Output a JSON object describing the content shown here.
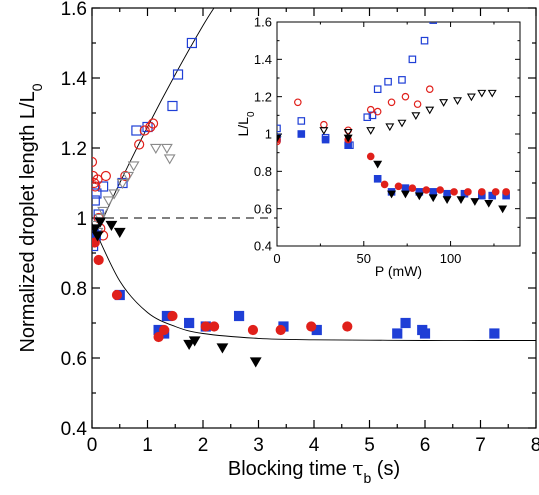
{
  "chart_data": [
    {
      "type": "scatter",
      "title": "",
      "xlabel_main": "Blocking time ",
      "xlabel_symbol": "τ",
      "xlabel_sub": "b",
      "xlabel_unit": " (s)",
      "ylabel_main": "Normalized droplet length L/L",
      "ylabel_sub": "0",
      "xlim": [
        0,
        8
      ],
      "ylim": [
        0.4,
        1.6
      ],
      "xticks": [
        "0",
        "1",
        "2",
        "3",
        "4",
        "5",
        "6",
        "7",
        "8"
      ],
      "yticks": [
        "0.4",
        "0.6",
        "0.8",
        "1",
        "1.2",
        "1.4",
        "1.6"
      ],
      "reference_line_y": 1.0,
      "colors": {
        "blue": "#1f3fd6",
        "red": "#e0201b",
        "black": "#000000",
        "gray": "#8a8a8a"
      },
      "series": [
        {
          "marker": "square-open",
          "color": "#1f3fd6",
          "x": [
            0.02,
            0.03,
            0.05,
            0.08,
            0.12,
            0.2,
            0.55,
            0.8,
            1.0,
            1.45,
            1.55,
            1.8
          ],
          "y": [
            0.92,
            0.96,
            1.05,
            1.07,
            1.01,
            1.09,
            1.1,
            1.25,
            1.26,
            1.32,
            1.41,
            1.5
          ]
        },
        {
          "marker": "circle-open",
          "color": "#e0201b",
          "x": [
            0.0,
            0.02,
            0.04,
            0.06,
            0.1,
            0.12,
            0.15,
            0.2,
            0.25,
            0.6,
            0.85,
            0.95,
            1.05,
            1.1
          ],
          "y": [
            1.16,
            1.12,
            1.1,
            1.09,
            1.11,
            1.0,
            0.97,
            0.95,
            1.12,
            1.12,
            1.21,
            1.25,
            1.26,
            1.27
          ]
        },
        {
          "marker": "triangle-down-open",
          "color": "#8a8a8a",
          "x": [
            0.05,
            0.1,
            0.15,
            0.2,
            0.3,
            0.4,
            0.55,
            0.65,
            0.75,
            1.15,
            1.35,
            1.4
          ],
          "y": [
            0.98,
            0.96,
            1.0,
            1.02,
            1.05,
            1.07,
            1.1,
            1.12,
            1.15,
            1.2,
            1.2,
            1.17
          ]
        },
        {
          "marker": "square-filled",
          "color": "#1f3fd6",
          "x": [
            0.03,
            0.07,
            0.5,
            1.2,
            1.3,
            1.35,
            1.75,
            2.05,
            2.65,
            3.45,
            4.05,
            5.5,
            5.65,
            5.95,
            6.0,
            7.25
          ],
          "y": [
            0.94,
            0.95,
            0.78,
            0.68,
            0.67,
            0.72,
            0.7,
            0.69,
            0.72,
            0.69,
            0.68,
            0.67,
            0.7,
            0.68,
            0.67,
            0.67
          ]
        },
        {
          "marker": "circle-filled",
          "color": "#e0201b",
          "x": [
            0.05,
            0.12,
            0.45,
            1.2,
            1.3,
            1.45,
            2.05,
            2.2,
            2.9,
            3.4,
            3.95,
            4.6
          ],
          "y": [
            0.93,
            0.88,
            0.78,
            0.66,
            0.68,
            0.72,
            0.69,
            0.69,
            0.68,
            0.68,
            0.69,
            0.69
          ]
        },
        {
          "marker": "triangle-down-filled",
          "color": "#000000",
          "x": [
            0.05,
            0.1,
            0.15,
            0.35,
            0.5,
            1.75,
            1.85,
            2.35,
            2.95
          ],
          "y": [
            0.97,
            0.95,
            0.99,
            0.98,
            0.96,
            0.64,
            0.65,
            0.63,
            0.59
          ]
        }
      ],
      "fits": [
        {
          "type": "curve",
          "x": [
            0.0,
            0.5,
            1.0,
            1.5,
            2.0,
            2.28
          ],
          "y": [
            0.93,
            1.1,
            1.26,
            1.41,
            1.55,
            1.62
          ]
        },
        {
          "type": "curve",
          "x": [
            0.0,
            0.5,
            1.0,
            1.5,
            2.0,
            3.0,
            4.0,
            5.0,
            6.0,
            7.0,
            8.0
          ],
          "y": [
            0.985,
            0.82,
            0.73,
            0.69,
            0.67,
            0.656,
            0.652,
            0.651,
            0.65,
            0.65,
            0.65
          ]
        }
      ]
    },
    {
      "type": "scatter",
      "title": "",
      "xlabel": "P (mW)",
      "ylabel_main": "L/L",
      "ylabel_sub": "0",
      "xlim": [
        0,
        140
      ],
      "ylim": [
        0.4,
        1.6
      ],
      "xticks": [
        "0",
        "50",
        "100"
      ],
      "xtick_values": [
        0,
        50,
        100
      ],
      "yticks": [
        "0.4",
        "0.6",
        "0.8",
        "1",
        "1.2",
        "1.4",
        "1.6"
      ],
      "series": [
        {
          "marker": "square-open",
          "color": "#1f3fd6",
          "x": [
            0,
            14,
            28,
            42,
            52,
            55,
            58,
            64,
            72,
            78,
            85,
            90
          ],
          "y": [
            1.03,
            1.07,
            0.98,
            0.94,
            1.09,
            1.1,
            1.24,
            1.28,
            1.29,
            1.4,
            1.5,
            1.61
          ]
        },
        {
          "marker": "circle-open",
          "color": "#e0201b",
          "x": [
            0,
            12,
            27,
            41,
            54,
            58,
            66,
            74,
            81,
            88
          ],
          "y": [
            0.96,
            1.17,
            1.05,
            1.02,
            1.13,
            1.12,
            1.17,
            1.2,
            1.16,
            1.24
          ]
        },
        {
          "marker": "triangle-down-open",
          "color": "#000000",
          "x": [
            0,
            27,
            41,
            54,
            65,
            72,
            80,
            88,
            96,
            104,
            112,
            118,
            124
          ],
          "y": [
            0.97,
            1.02,
            1.01,
            1.02,
            1.04,
            1.06,
            1.1,
            1.13,
            1.17,
            1.18,
            1.2,
            1.22,
            1.22
          ]
        },
        {
          "marker": "square-filled",
          "color": "#1f3fd6",
          "x": [
            0,
            14,
            28,
            41,
            58,
            66,
            74,
            82,
            90,
            98,
            108,
            118,
            124,
            132
          ],
          "y": [
            0.98,
            1.0,
            0.97,
            0.94,
            0.76,
            0.69,
            0.71,
            0.69,
            0.69,
            0.68,
            0.68,
            0.67,
            0.67,
            0.67
          ]
        },
        {
          "marker": "circle-filled",
          "color": "#e0201b",
          "x": [
            0,
            41,
            54,
            62,
            70,
            78,
            86,
            94,
            102,
            110,
            118,
            126,
            132
          ],
          "y": [
            0.97,
            0.97,
            0.88,
            0.73,
            0.72,
            0.71,
            0.7,
            0.7,
            0.69,
            0.69,
            0.69,
            0.69,
            0.69
          ]
        },
        {
          "marker": "triangle-down-filled",
          "color": "#000000",
          "x": [
            0,
            41,
            58,
            66,
            74,
            82,
            90,
            98,
            106,
            114,
            122,
            130
          ],
          "y": [
            0.98,
            0.98,
            0.84,
            0.68,
            0.68,
            0.67,
            0.66,
            0.65,
            0.65,
            0.64,
            0.63,
            0.6
          ]
        }
      ]
    }
  ]
}
